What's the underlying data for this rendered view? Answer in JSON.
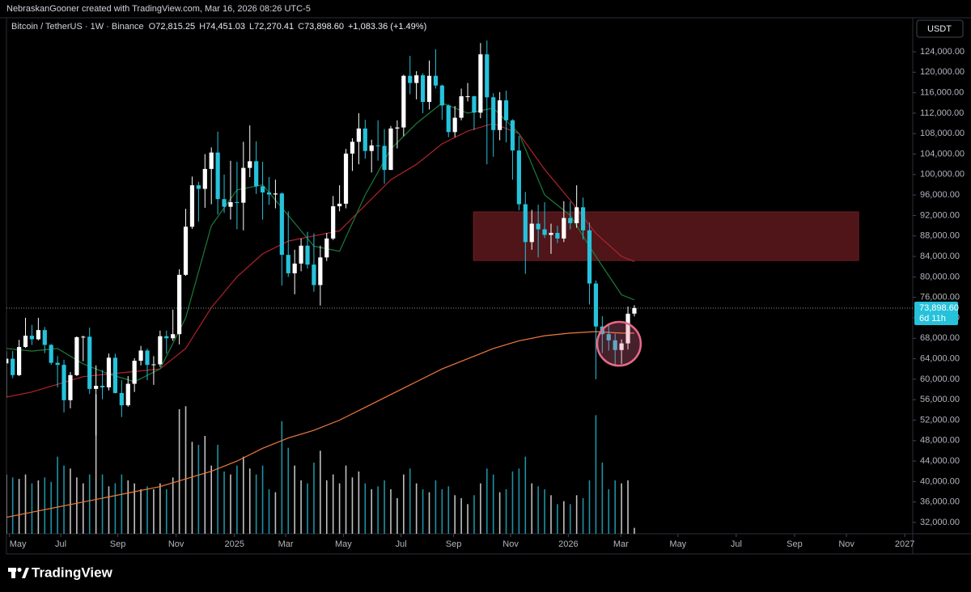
{
  "chart_data": {
    "type": "candlestick",
    "credit": "NebraskanGooner created with TradingView.com, Mar 16, 2026 08:26 UTC-5",
    "symbol": "Bitcoin / TetherUS · 1W · Binance",
    "ohlc": [
      {
        "key": "O",
        "value": "72,815.25"
      },
      {
        "key": "H",
        "value": "74,451.03"
      },
      {
        "key": "L",
        "value": "72,270.41"
      },
      {
        "key": "C",
        "value": "73,898.60"
      }
    ],
    "change": "+1,083.36 (+1.49%)",
    "currency": "USDT",
    "last_price_label": "73,898.60",
    "countdown": "6d 11h",
    "up_color": "#ffffff",
    "down_color": "#26c2db",
    "xlim": [
      1.03,
      142.44
    ],
    "ylim": [
      29787,
      130639
    ],
    "volume_ylim": [
      0,
      600000
    ],
    "grid": false,
    "yticks": [
      {
        "value": 124000,
        "label": "124,000.00"
      },
      {
        "value": 120000,
        "label": "120,000.00"
      },
      {
        "value": 116000,
        "label": "116,000.00"
      },
      {
        "value": 112000,
        "label": "112,000.00"
      },
      {
        "value": 108000,
        "label": "108,000.00"
      },
      {
        "value": 104000,
        "label": "104,000.00"
      },
      {
        "value": 100000,
        "label": "100,000.00"
      },
      {
        "value": 96000,
        "label": "96,000.00"
      },
      {
        "value": 92000,
        "label": "92,000.00"
      },
      {
        "value": 88000,
        "label": "88,000.00"
      },
      {
        "value": 84000,
        "label": "84,000.00"
      },
      {
        "value": 80000,
        "label": "80,000.00"
      },
      {
        "value": 76000,
        "label": "76,000.00"
      },
      {
        "value": 72000,
        "label": "72,000.00"
      },
      {
        "value": 68000,
        "label": "68,000.00"
      },
      {
        "value": 64000,
        "label": "64,000.00"
      },
      {
        "value": 60000,
        "label": "60,000.00"
      },
      {
        "value": 56000,
        "label": "56,000.00"
      },
      {
        "value": 52000,
        "label": "52,000.00"
      },
      {
        "value": 48000,
        "label": "48,000.00"
      },
      {
        "value": 44000,
        "label": "44,000.00"
      },
      {
        "value": 40000,
        "label": "40,000.00"
      },
      {
        "value": 36000,
        "label": "36,000.00"
      },
      {
        "value": 32000,
        "label": "32,000.00"
      }
    ],
    "xticks": [
      {
        "value": 1.5,
        "label": "May"
      },
      {
        "value": 9.5,
        "label": "Jul"
      },
      {
        "value": 18.4,
        "label": "Sep"
      },
      {
        "value": 27.5,
        "label": "Nov"
      },
      {
        "value": 36.6,
        "label": "2025"
      },
      {
        "value": 44.6,
        "label": "Mar"
      },
      {
        "value": 53.6,
        "label": "May"
      },
      {
        "value": 62.6,
        "label": "Jul"
      },
      {
        "value": 70.8,
        "label": "Sep"
      },
      {
        "value": 79.7,
        "label": "Nov"
      },
      {
        "value": 88.7,
        "label": "2026"
      },
      {
        "value": 96.9,
        "label": "Mar"
      },
      {
        "value": 105.8,
        "label": "May"
      },
      {
        "value": 114.9,
        "label": "Jul"
      },
      {
        "value": 124.0,
        "label": "Sep"
      },
      {
        "value": 132.1,
        "label": "Nov"
      },
      {
        "value": 141.2,
        "label": "2027"
      }
    ],
    "x": [
      1,
      2,
      3,
      4,
      5,
      6,
      7,
      8,
      9,
      10,
      11,
      12,
      13,
      14,
      15,
      16,
      17,
      18,
      19,
      20,
      21,
      22,
      23,
      24,
      25,
      26,
      27,
      28,
      29,
      30,
      31,
      32,
      33,
      34,
      35,
      36,
      37,
      38,
      39,
      40,
      41,
      42,
      43,
      44,
      45,
      46,
      47,
      48,
      49,
      50,
      51,
      52,
      53,
      54,
      55,
      56,
      57,
      58,
      59,
      60,
      61,
      62,
      63,
      64,
      65,
      66,
      67,
      68,
      69,
      70,
      71,
      72,
      73,
      74,
      75,
      76,
      77,
      78,
      79,
      80,
      81,
      82,
      83,
      84,
      85,
      86,
      87,
      88,
      89,
      90,
      91,
      92,
      93,
      94,
      95,
      96,
      97,
      98,
      99
    ],
    "open": [
      63100,
      64000,
      60800,
      66300,
      68500,
      67800,
      69600,
      66700,
      63200,
      62800,
      55900,
      60800,
      68200,
      68300,
      58100,
      58700,
      58400,
      64200,
      57300,
      54900,
      59100,
      63600,
      65600,
      62800,
      62900,
      68400,
      68000,
      68800,
      80400,
      89800,
      97900,
      97200,
      101100,
      104300,
      95200,
      93700,
      94600,
      94500,
      101300,
      102600,
      97700,
      96500,
      96100,
      96300,
      84300,
      80700,
      82600,
      86100,
      82400,
      78400,
      83800,
      87500,
      93800,
      94300,
      104100,
      106400,
      109000,
      104600,
      105700,
      105600,
      100900,
      109000,
      109200,
      119300,
      117900,
      119400,
      114200,
      119300,
      117400,
      113500,
      108300,
      111100,
      115300,
      115300,
      112100,
      123500,
      115100,
      108700,
      114500,
      110600,
      104700,
      94200,
      86800,
      90400,
      89300,
      88200,
      88600,
      87500,
      91500,
      90500,
      93600,
      89100,
      78700,
      70300,
      68800,
      67600,
      65700,
      67000,
      72815.25
    ],
    "high": [
      65500,
      65500,
      67700,
      72000,
      70600,
      72000,
      70200,
      66900,
      64500,
      63800,
      61400,
      68400,
      68500,
      70100,
      62700,
      61800,
      65000,
      65000,
      59800,
      60600,
      64100,
      66500,
      66000,
      64500,
      69500,
      69500,
      73600,
      81500,
      93300,
      99600,
      98600,
      104000,
      105300,
      108400,
      100000,
      102700,
      102500,
      106400,
      109600,
      106500,
      102500,
      99500,
      99000,
      96500,
      92800,
      85300,
      87500,
      88800,
      88500,
      86100,
      88600,
      95800,
      97900,
      105000,
      107100,
      112000,
      110700,
      106800,
      110600,
      108900,
      109500,
      110600,
      119500,
      123200,
      120200,
      119800,
      122300,
      124500,
      117600,
      113700,
      113400,
      116800,
      117900,
      115400,
      125700,
      126200,
      115900,
      116100,
      116400,
      110800,
      107500,
      96600,
      93100,
      94100,
      94600,
      90400,
      90000,
      94800,
      94700,
      97900,
      95500,
      90600,
      79300,
      72300,
      70900,
      68900,
      67800,
      74200,
      74451.03
    ],
    "low": [
      56500,
      60200,
      60600,
      66100,
      66700,
      67600,
      65100,
      62800,
      58400,
      53500,
      54300,
      60600,
      63500,
      57100,
      49000,
      56100,
      57800,
      57200,
      52600,
      54600,
      57500,
      62700,
      59800,
      58900,
      62400,
      65000,
      67500,
      66800,
      80200,
      89400,
      90800,
      93500,
      94200,
      92200,
      92500,
      91200,
      89300,
      89100,
      99500,
      96200,
      91200,
      94100,
      93400,
      78300,
      80000,
      76600,
      81100,
      81600,
      77100,
      74400,
      83100,
      87200,
      92800,
      93400,
      100700,
      102000,
      103100,
      100400,
      102700,
      98200,
      100900,
      105100,
      107500,
      115700,
      114700,
      112000,
      112700,
      116800,
      110700,
      107300,
      107300,
      110600,
      114300,
      108700,
      111000,
      102000,
      103500,
      106700,
      106300,
      99000,
      93000,
      80600,
      85300,
      83800,
      87600,
      84500,
      86600,
      86800,
      89300,
      89600,
      87300,
      74600,
      60000,
      65100,
      65600,
      62500,
      63000,
      65800,
      72270.41
    ],
    "close": [
      64000,
      60800,
      66300,
      68500,
      67800,
      69600,
      66700,
      63200,
      62800,
      55900,
      60800,
      68200,
      68300,
      58100,
      58700,
      58400,
      64200,
      57300,
      54900,
      59100,
      63600,
      65600,
      62800,
      62900,
      68400,
      68000,
      68800,
      80400,
      89800,
      97900,
      97200,
      101100,
      104300,
      95200,
      93700,
      94600,
      94500,
      101300,
      102600,
      97700,
      96500,
      96100,
      96300,
      84300,
      80700,
      82600,
      86100,
      82400,
      78400,
      83800,
      87500,
      93800,
      94300,
      104100,
      106400,
      109000,
      104600,
      105700,
      105600,
      100900,
      109000,
      109200,
      119300,
      117900,
      119400,
      114200,
      119300,
      117400,
      113500,
      108300,
      111100,
      115300,
      115300,
      112100,
      123500,
      115100,
      108700,
      114500,
      110600,
      104700,
      94200,
      86800,
      90400,
      89300,
      88200,
      88600,
      87500,
      91500,
      90500,
      93600,
      89100,
      78700,
      70300,
      68800,
      67600,
      65700,
      67000,
      72800,
      73898.6
    ],
    "volume": [
      200000,
      190000,
      185000,
      200000,
      170000,
      180000,
      190000,
      175000,
      260000,
      230000,
      220000,
      190000,
      170000,
      200000,
      470000,
      200000,
      160000,
      170000,
      200000,
      180000,
      170000,
      150000,
      160000,
      150000,
      170000,
      150000,
      190000,
      420000,
      430000,
      310000,
      300000,
      330000,
      230000,
      300000,
      210000,
      200000,
      230000,
      260000,
      220000,
      200000,
      230000,
      150000,
      140000,
      380000,
      290000,
      230000,
      180000,
      170000,
      240000,
      280000,
      180000,
      200000,
      170000,
      230000,
      190000,
      210000,
      170000,
      150000,
      160000,
      180000,
      150000,
      120000,
      200000,
      220000,
      170000,
      150000,
      140000,
      180000,
      150000,
      160000,
      130000,
      120000,
      100000,
      130000,
      170000,
      220000,
      200000,
      140000,
      150000,
      210000,
      220000,
      260000,
      170000,
      160000,
      150000,
      130000,
      100000,
      110000,
      100000,
      130000,
      120000,
      180000,
      400000,
      240000,
      150000,
      180000,
      170000,
      180000,
      20000
    ],
    "moving_averages": [
      {
        "color": "#ef7a3c",
        "x": [
          1,
          5,
          9,
          13,
          17,
          21,
          25,
          29,
          33,
          37,
          41,
          45,
          49,
          53,
          57,
          61,
          65,
          69,
          73,
          77,
          81,
          85,
          89,
          93,
          97,
          99
        ],
        "values": [
          33000,
          34000,
          35000,
          36000,
          37000,
          38000,
          39000,
          40500,
          42000,
          44000,
          46500,
          48500,
          50000,
          52000,
          54500,
          57000,
          59500,
          62000,
          64000,
          66000,
          67500,
          68500,
          69000,
          69300,
          69000,
          69000
        ]
      },
      {
        "color": "#b3222c",
        "x": [
          1,
          5,
          9,
          13,
          17,
          21,
          25,
          29,
          33,
          37,
          41,
          45,
          49,
          53,
          57,
          61,
          65,
          69,
          73,
          77,
          81,
          85,
          89,
          93,
          97,
          99
        ],
        "values": [
          56500,
          57500,
          59000,
          60500,
          61000,
          61500,
          62000,
          66000,
          74000,
          80000,
          84500,
          87000,
          88000,
          89000,
          94000,
          99000,
          102000,
          106000,
          108500,
          110000,
          108000,
          101000,
          95000,
          88500,
          84000,
          83000
        ]
      },
      {
        "color": "#1e7a3a",
        "x": [
          1,
          5,
          9,
          13,
          17,
          21,
          25,
          29,
          33,
          37,
          41,
          45,
          49,
          53,
          57,
          61,
          65,
          69,
          73,
          77,
          81,
          85,
          89,
          93,
          97,
          99
        ],
        "values": [
          66000,
          65500,
          66000,
          63000,
          61000,
          59500,
          62000,
          72000,
          90000,
          97000,
          98000,
          92000,
          86000,
          85000,
          96000,
          105000,
          110000,
          114000,
          112000,
          113000,
          108000,
          96000,
          92000,
          84000,
          76500,
          75500
        ]
      }
    ],
    "zone": {
      "x": [
        73.9,
        134.0
      ],
      "y": [
        83200,
        92700
      ],
      "color": "#4f1519"
    },
    "circle": {
      "x": [
        93.2,
        100.0
      ],
      "y": [
        62650,
        71200
      ],
      "color": "#e8698a"
    }
  },
  "footer": {
    "brand": "TradingView"
  }
}
